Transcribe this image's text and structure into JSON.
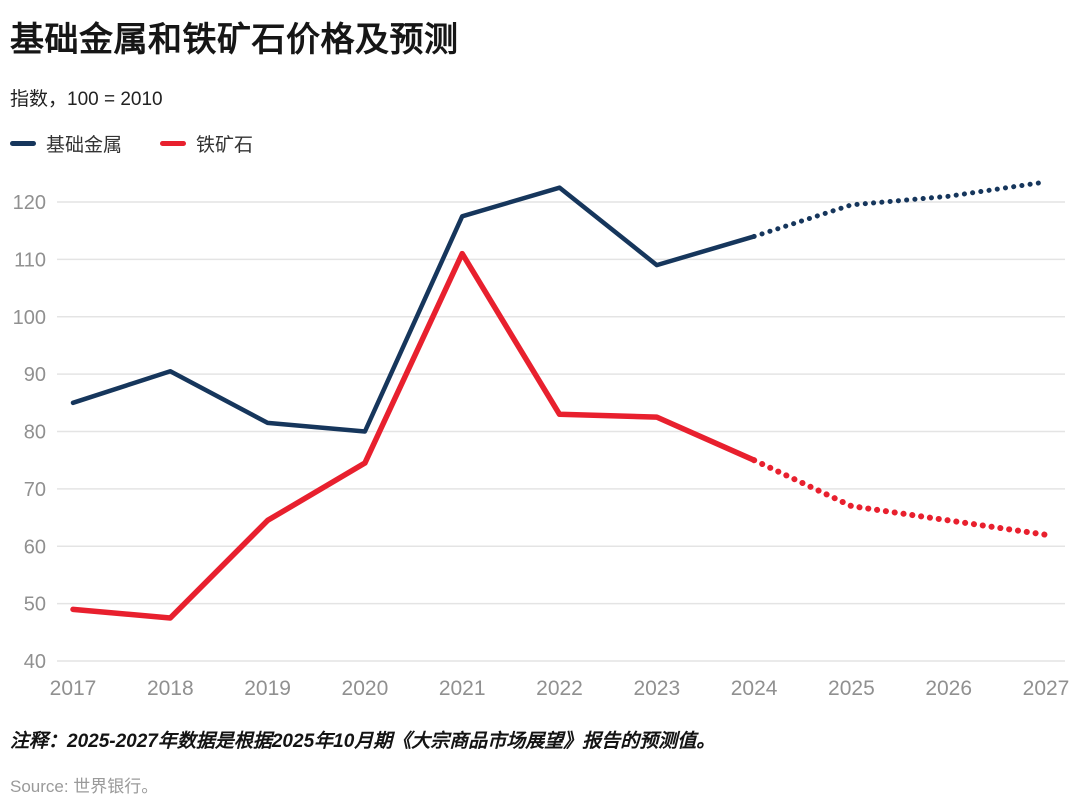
{
  "chart_data": {
    "type": "line",
    "title": "基础金属和铁矿石价格及预测",
    "subtitle": "指数，100 = 2010",
    "note": "注释：2025-2027年数据是根据2025年10月期《大宗商品市场展望》报告的预测值。",
    "source": "Source: 世界银行。",
    "categories": [
      "2017",
      "2018",
      "2019",
      "2020",
      "2021",
      "2022",
      "2023",
      "2024",
      "2025",
      "2026",
      "2027"
    ],
    "series": [
      {
        "name": "基础金属",
        "color": "#16365c",
        "values": [
          85,
          90.5,
          81.5,
          80,
          117.5,
          122.5,
          109,
          114,
          119.5,
          121,
          123.5
        ],
        "forecast_start_index": 7,
        "forecast_style": "dotted"
      },
      {
        "name": "铁矿石",
        "color": "#e8202e",
        "values": [
          49,
          47.5,
          64.5,
          74.5,
          111,
          83,
          82.5,
          75,
          67,
          64.5,
          62
        ],
        "forecast_start_index": 7,
        "forecast_style": "dotted"
      }
    ],
    "y_ticks": [
      40,
      50,
      60,
      70,
      80,
      90,
      100,
      110,
      120
    ],
    "ylim": [
      40,
      125
    ],
    "grid": "horizontal",
    "gridline_color": "#e4e4e4",
    "axis_label_color": "#909090",
    "legend_position": "top-left"
  }
}
